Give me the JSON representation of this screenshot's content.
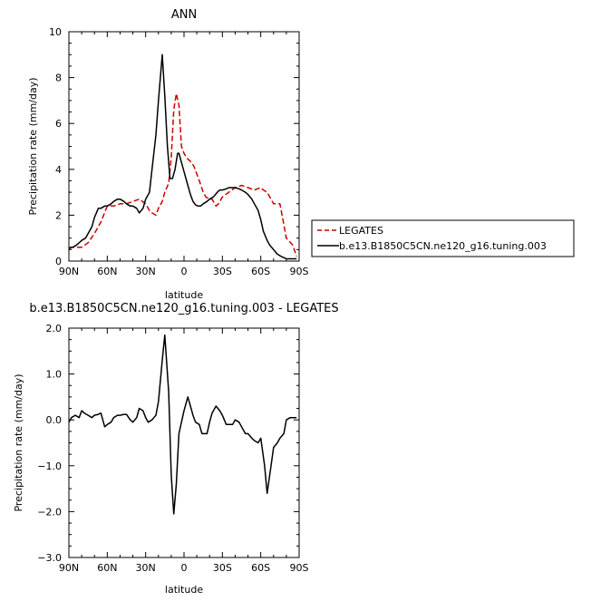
{
  "chart_data": [
    {
      "type": "line",
      "title": "ANN",
      "xlabel": "latitude",
      "ylabel": "Precipitation rate  (mm/day)",
      "xlim": [
        -90,
        90
      ],
      "ylim": [
        0,
        10
      ],
      "x_ticks": [
        -90,
        -60,
        -30,
        0,
        30,
        60,
        90
      ],
      "x_tick_labels": [
        "90N",
        "60N",
        "30N",
        "0",
        "30S",
        "60S",
        "90S"
      ],
      "y_ticks": [
        0,
        2,
        4,
        6,
        8,
        10
      ],
      "y_tick_labels": [
        "0",
        "2",
        "4",
        "6",
        "8",
        "10"
      ],
      "legend_position": "right",
      "series": [
        {
          "name": "LEGATES",
          "color": "#cc0000",
          "dash": "dashed",
          "x": [
            -90,
            -85,
            -80,
            -75,
            -70,
            -65,
            -60,
            -55,
            -50,
            -45,
            -40,
            -35,
            -30,
            -27,
            -25,
            -22,
            -20,
            -17,
            -15,
            -12,
            -10,
            -8,
            -6,
            -4,
            -2,
            0,
            2,
            4,
            6,
            8,
            10,
            12,
            15,
            17,
            20,
            22,
            25,
            27,
            30,
            35,
            40,
            45,
            50,
            55,
            60,
            62,
            65,
            70,
            75,
            80,
            85,
            88
          ],
          "y": [
            0.6,
            0.6,
            0.6,
            0.8,
            1.2,
            1.7,
            2.4,
            2.4,
            2.5,
            2.5,
            2.6,
            2.7,
            2.5,
            2.2,
            2.1,
            2.0,
            2.3,
            2.6,
            3.0,
            3.4,
            4.5,
            6.6,
            7.3,
            6.8,
            5.0,
            4.7,
            4.5,
            4.4,
            4.3,
            4.1,
            3.8,
            3.5,
            3.0,
            2.8,
            2.7,
            2.7,
            2.4,
            2.5,
            2.8,
            3.0,
            3.2,
            3.3,
            3.2,
            3.1,
            3.2,
            3.1,
            3.0,
            2.5,
            2.5,
            1.0,
            0.7,
            0.2
          ]
        },
        {
          "name": "b.e13.B1850C5CN.ne120_g16.tuning.003",
          "color": "#000000",
          "dash": "solid",
          "x": [
            -90,
            -87,
            -84,
            -82,
            -80,
            -77,
            -75,
            -72,
            -70,
            -67,
            -65,
            -62,
            -60,
            -57,
            -55,
            -52,
            -50,
            -47,
            -45,
            -42,
            -40,
            -37,
            -35,
            -32,
            -30,
            -27,
            -25,
            -22,
            -20,
            -17,
            -15,
            -13,
            -11,
            -9,
            -7,
            -5,
            -4,
            -2,
            0,
            3,
            5,
            7,
            9,
            11,
            13,
            15,
            18,
            20,
            23,
            26,
            28,
            30,
            33,
            35,
            38,
            40,
            43,
            45,
            48,
            50,
            53,
            55,
            58,
            60,
            62,
            65,
            67,
            70,
            73,
            76,
            78,
            80,
            82,
            85,
            88
          ],
          "y": [
            0.55,
            0.6,
            0.7,
            0.8,
            0.9,
            1.0,
            1.2,
            1.5,
            1.9,
            2.3,
            2.3,
            2.4,
            2.4,
            2.5,
            2.6,
            2.7,
            2.7,
            2.6,
            2.5,
            2.4,
            2.4,
            2.3,
            2.1,
            2.3,
            2.7,
            3.0,
            4.0,
            5.5,
            7.0,
            9.0,
            7.2,
            5.0,
            3.6,
            3.6,
            4.0,
            4.7,
            4.7,
            4.3,
            3.9,
            3.3,
            2.9,
            2.6,
            2.45,
            2.4,
            2.4,
            2.5,
            2.6,
            2.7,
            2.8,
            3.0,
            3.1,
            3.1,
            3.15,
            3.2,
            3.2,
            3.2,
            3.15,
            3.1,
            3.0,
            2.9,
            2.7,
            2.5,
            2.2,
            1.8,
            1.3,
            0.9,
            0.7,
            0.5,
            0.3,
            0.2,
            0.15,
            0.1,
            0.1,
            0.1,
            0.1
          ]
        }
      ]
    },
    {
      "type": "line",
      "title": "b.e13.B1850C5CN.ne120_g16.tuning.003 - LEGATES",
      "xlabel": "latitude",
      "ylabel": "Precipitation rate  (mm/day)",
      "xlim": [
        -90,
        90
      ],
      "ylim": [
        -3,
        2
      ],
      "x_ticks": [
        -90,
        -60,
        -30,
        0,
        30,
        60,
        90
      ],
      "x_tick_labels": [
        "90N",
        "60N",
        "30N",
        "0",
        "30S",
        "60S",
        "90S"
      ],
      "y_ticks": [
        -3,
        -2,
        -1,
        0,
        1,
        2
      ],
      "y_tick_labels": [
        "−3.0",
        "−2.0",
        "−1.0",
        "0.0",
        "1.0",
        "2.0"
      ],
      "series": [
        {
          "name": "",
          "color": "#000000",
          "dash": "solid",
          "x": [
            -90,
            -88,
            -85,
            -82,
            -80,
            -78,
            -75,
            -72,
            -70,
            -67,
            -65,
            -62,
            -60,
            -57,
            -55,
            -52,
            -50,
            -47,
            -45,
            -42,
            -40,
            -37,
            -35,
            -32,
            -30,
            -28,
            -25,
            -22,
            -20,
            -17,
            -15,
            -12,
            -10,
            -8,
            -6,
            -4,
            -2,
            0,
            3,
            5,
            7,
            9,
            12,
            14,
            16,
            18,
            20,
            22,
            25,
            28,
            30,
            33,
            35,
            38,
            40,
            43,
            45,
            48,
            50,
            53,
            55,
            58,
            60,
            63,
            65,
            68,
            70,
            73,
            75,
            78,
            80,
            83,
            85,
            88
          ],
          "y": [
            -0.05,
            0.05,
            0.1,
            0.05,
            0.2,
            0.15,
            0.1,
            0.05,
            0.1,
            0.12,
            0.15,
            -0.15,
            -0.1,
            -0.05,
            0.05,
            0.1,
            0.1,
            0.12,
            0.12,
            0.0,
            -0.05,
            0.05,
            0.25,
            0.2,
            0.05,
            -0.05,
            0.0,
            0.1,
            0.4,
            1.3,
            1.85,
            0.6,
            -1.2,
            -2.05,
            -1.4,
            -0.3,
            -0.05,
            0.2,
            0.5,
            0.3,
            0.1,
            -0.05,
            -0.1,
            -0.3,
            -0.3,
            -0.3,
            -0.05,
            0.15,
            0.3,
            0.2,
            0.1,
            -0.1,
            -0.1,
            -0.1,
            0.0,
            -0.05,
            -0.15,
            -0.3,
            -0.3,
            -0.4,
            -0.45,
            -0.5,
            -0.4,
            -1.0,
            -1.6,
            -1.0,
            -0.6,
            -0.5,
            -0.4,
            -0.3,
            0.0,
            0.05,
            0.05,
            0.05
          ]
        }
      ]
    }
  ]
}
